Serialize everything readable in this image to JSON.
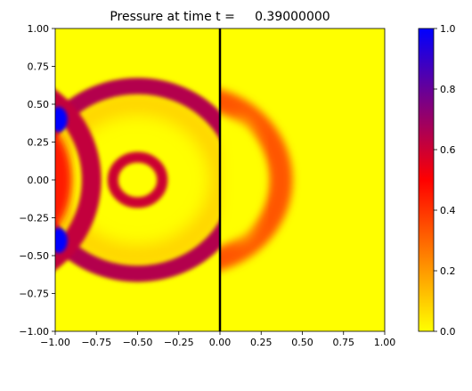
{
  "chart_data": {
    "type": "heatmap",
    "title": "Pressure at time t =     0.39000000",
    "xlabel": "",
    "ylabel": "",
    "xlim": [
      -1.0,
      1.0
    ],
    "ylim": [
      -1.0,
      1.0
    ],
    "x_ticks": [
      -1.0,
      -0.75,
      -0.5,
      -0.25,
      0.0,
      0.25,
      0.5,
      0.75,
      1.0
    ],
    "x_tick_labels": [
      "−1.00",
      "−0.75",
      "−0.50",
      "−0.25",
      "0.00",
      "0.25",
      "0.50",
      "0.75",
      "1.00"
    ],
    "y_ticks": [
      1.0,
      0.75,
      0.5,
      0.25,
      0.0,
      -0.25,
      -0.5,
      -0.75,
      -1.0
    ],
    "y_tick_labels": [
      "1.00",
      "0.75",
      "0.50",
      "0.25",
      "0.00",
      "−0.25",
      "−0.50",
      "−0.75",
      "−1.00"
    ],
    "colorbar": {
      "range": [
        0.0,
        1.0
      ],
      "ticks": [
        0.0,
        0.2,
        0.4,
        0.6,
        0.8,
        1.0
      ],
      "tick_labels": [
        "0.0",
        "0.2",
        "0.4",
        "0.6",
        "0.8",
        "1.0"
      ],
      "colors": [
        "#ffff00",
        "#ff8000",
        "#ff0000",
        "#800080",
        "#0000ff"
      ]
    },
    "interface_line_x": 0.0,
    "features": {
      "inner_ring": {
        "cx": -0.5,
        "cy": 0.0,
        "r": 0.15,
        "value": 0.6
      },
      "outer_ring_left": {
        "cx": -0.5,
        "cy": 0.0,
        "r": 0.62,
        "value": 0.65
      },
      "outer_ring_right": {
        "cx": -0.18,
        "cy": 0.0,
        "r": 0.55,
        "value": 0.33
      },
      "left_arc": {
        "cx": -1.4,
        "cy": 0.0,
        "r": 0.62,
        "value": 0.62
      },
      "wall_hotspots": [
        {
          "x": -0.98,
          "y": 0.4,
          "value": 1.0
        },
        {
          "x": -0.98,
          "y": -0.4,
          "value": 1.0
        }
      ]
    },
    "grid": false
  }
}
